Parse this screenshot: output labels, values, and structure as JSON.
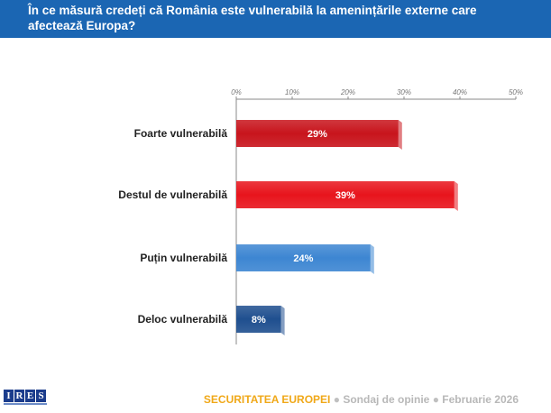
{
  "header": {
    "title_line1": "În ce măsură credeți că România este vulnerabilă  la amenințările  externe care",
    "title_line2": "afectează Europa?"
  },
  "chart_data": {
    "type": "bar",
    "orientation": "horizontal",
    "title": "În ce măsură credeți că România este vulnerabilă la amenințările externe care afectează Europa?",
    "categories": [
      "Foarte vulnerabilă",
      "Destul de vulnerabilă",
      "Puțin vulnerabilă",
      "Deloc vulnerabilă"
    ],
    "values": [
      29,
      39,
      24,
      8
    ],
    "value_labels": [
      "29%",
      "39%",
      "24%",
      "8%"
    ],
    "bar_colors": [
      "#c8141c",
      "#e8141c",
      "#3d86d2",
      "#1f4f8f"
    ],
    "xlim": [
      0,
      50
    ],
    "ticks": [
      0,
      10,
      20,
      30,
      40,
      50
    ],
    "tick_labels": [
      "0%",
      "10%",
      "20%",
      "30%",
      "40%",
      "50%"
    ],
    "grid": false,
    "xlabel": "",
    "ylabel": ""
  },
  "footer": {
    "logo_letters": [
      "I",
      "R",
      "E",
      "S"
    ],
    "survey_title": "SECURITATEA EUROPEI",
    "separator": "●",
    "survey_type": "Sondaj de opinie",
    "survey_date": "Februarie 2026"
  }
}
